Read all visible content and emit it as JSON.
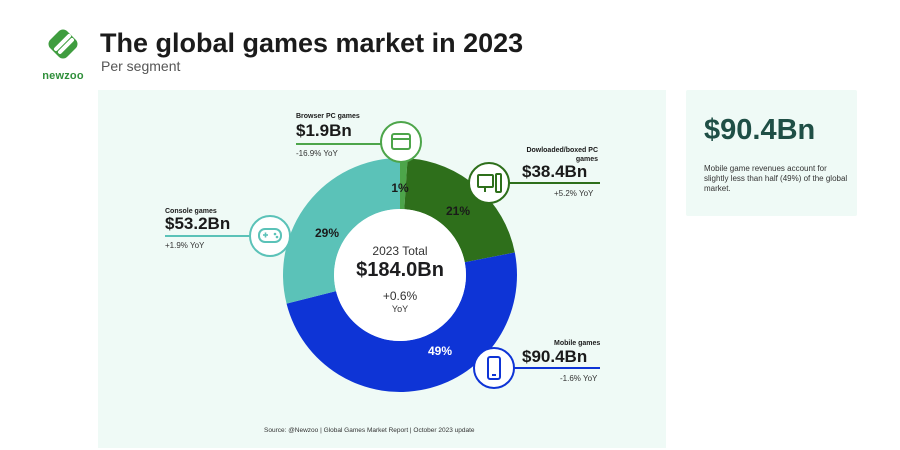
{
  "header": {
    "logo_text": "newzoo",
    "title": "The global games market in 2023",
    "subtitle": "Per segment"
  },
  "colors": {
    "mobile": "#0e34d6",
    "console": "#5bc2b8",
    "browser": "#4da54a",
    "downloaded": "#2e6f1b",
    "logo": "#3f9d3f",
    "accent_dark": "#1f4f46"
  },
  "chart_data": {
    "type": "donut",
    "title": "The global games market in 2023",
    "subtitle": "Per segment",
    "unit": "Bn",
    "center": {
      "caption": "2023 Total",
      "value": "$184.0Bn",
      "yoy": "+0.6%",
      "yoy_label": "YoY"
    },
    "segments": [
      {
        "name": "Browser PC games",
        "value": 1.9,
        "value_label": "$1.9Bn",
        "share": 1,
        "share_label": "1%",
        "yoy": "-16.9% YoY",
        "color": "#4da54a",
        "icon": "browser-window-icon"
      },
      {
        "name": "Dowloaded/boxed PC games",
        "value": 38.4,
        "value_label": "$38.4Bn",
        "share": 21,
        "share_label": "21%",
        "yoy": "+5.2% YoY",
        "color": "#2e6f1b",
        "icon": "desktop-pc-icon"
      },
      {
        "name": "Mobile games",
        "value": 90.4,
        "value_label": "$90.4Bn",
        "share": 49,
        "share_label": "49%",
        "yoy": "-1.6% YoY",
        "color": "#0e34d6",
        "icon": "smartphone-icon"
      },
      {
        "name": "Console games",
        "value": 53.2,
        "value_label": "$53.2Bn",
        "share": 29,
        "share_label": "29%",
        "yoy": "+1.9% YoY",
        "color": "#5bc2b8",
        "icon": "gamepad-icon"
      }
    ]
  },
  "callout": {
    "value": "$90.4Bn",
    "text": "Mobile game revenues account for slightly less than half (49%) of the global market."
  },
  "source": "Source: @Newzoo | Global Games Market Report | October 2023 update"
}
